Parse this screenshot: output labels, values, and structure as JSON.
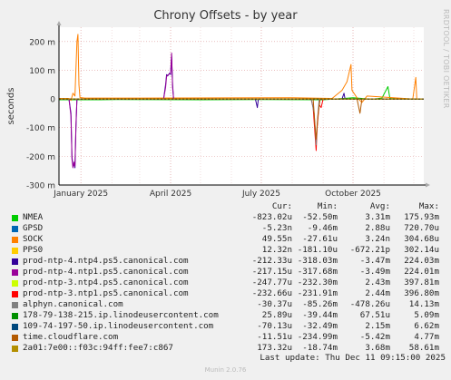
{
  "title": "Chrony Offsets - by year",
  "side_text": "RRDTOOL / TOBI OETIKER",
  "chart_data": {
    "type": "line",
    "title": "Chrony Offsets - by year",
    "ylabel": "seconds",
    "ylim": [
      -0.3,
      0.25
    ],
    "yticks": [
      {
        "value": 0.2,
        "label": "200 m"
      },
      {
        "value": 0.1,
        "label": "100 m"
      },
      {
        "value": 0,
        "label": "0"
      },
      {
        "value": -0.1,
        "label": "-100 m"
      },
      {
        "value": -0.2,
        "label": "-200 m"
      },
      {
        "value": -0.3,
        "label": "-300 m"
      }
    ],
    "xlim": [
      "2024-12-10",
      "2025-12-11"
    ],
    "xticks": [
      {
        "value": "2025-01-01",
        "label": "January 2025"
      },
      {
        "value": "2025-04-01",
        "label": "April 2025"
      },
      {
        "value": "2025-07-01",
        "label": "July 2025"
      },
      {
        "value": "2025-10-01",
        "label": "October 2025"
      }
    ],
    "grid": true,
    "series": [
      {
        "name": "NMEA",
        "color": "#00cc00",
        "points": [
          [
            "2024-12-10",
            -0.003
          ],
          [
            "2025-01-20",
            -0.003
          ],
          [
            "2025-02-10",
            -0.002
          ],
          [
            "2025-05-01",
            -0.003
          ],
          [
            "2025-07-01",
            -0.002
          ],
          [
            "2025-09-01",
            -0.003
          ],
          [
            "2025-10-01",
            0.004
          ],
          [
            "2025-10-20",
            -0.001
          ],
          [
            "2025-10-30",
            0.003
          ],
          [
            "2025-11-05",
            0.043
          ],
          [
            "2025-11-07",
            0.002
          ],
          [
            "2025-12-11",
            -0.001
          ]
        ]
      },
      {
        "name": "GPSD",
        "color": "#0066b3",
        "points": [
          [
            "2024-12-10",
            0.0
          ],
          [
            "2025-12-11",
            0.0
          ]
        ]
      },
      {
        "name": "SOCK",
        "color": "#ff8000",
        "points": [
          [
            "2024-12-10",
            0.002
          ],
          [
            "2024-12-20",
            0.002
          ],
          [
            "2024-12-22",
            -0.005
          ],
          [
            "2024-12-24",
            0.02
          ],
          [
            "2024-12-26",
            0.01
          ],
          [
            "2024-12-28",
            0.2
          ],
          [
            "2024-12-29",
            0.225
          ],
          [
            "2024-12-30",
            0.05
          ],
          [
            "2024-12-31",
            0.005
          ],
          [
            "2025-01-05",
            0.003
          ],
          [
            "2025-03-01",
            0.003
          ],
          [
            "2025-08-01",
            0.004
          ],
          [
            "2025-09-10",
            0.002
          ],
          [
            "2025-09-20",
            0.03
          ],
          [
            "2025-09-25",
            0.06
          ],
          [
            "2025-09-29",
            0.12
          ],
          [
            "2025-09-30",
            0.03
          ],
          [
            "2025-10-05",
            0.004
          ],
          [
            "2025-10-10",
            -0.012
          ],
          [
            "2025-10-15",
            0.01
          ],
          [
            "2025-11-30",
            0.0
          ],
          [
            "2025-12-03",
            0.075
          ],
          [
            "2025-12-04",
            0.0
          ],
          [
            "2025-12-11",
            0.0
          ]
        ]
      },
      {
        "name": "PPS0",
        "color": "#ffcc00",
        "points": [
          [
            "2024-12-10",
            0.0
          ],
          [
            "2025-12-11",
            0.0
          ]
        ]
      },
      {
        "name": "prod-ntp-4.ntp4.ps5.canonical.com",
        "color": "#330099",
        "points": [
          [
            "2024-12-10",
            0.0
          ],
          [
            "2024-12-20",
            0.0
          ],
          [
            "2024-12-22",
            -0.05
          ],
          [
            "2024-12-23",
            -0.2
          ],
          [
            "2024-12-24",
            -0.235
          ],
          [
            "2024-12-25",
            -0.225
          ],
          [
            "2024-12-26",
            -0.24
          ],
          [
            "2024-12-27",
            -0.1
          ],
          [
            "2024-12-28",
            0.0
          ],
          [
            "2025-03-25",
            0.0
          ],
          [
            "2025-03-27",
            0.05
          ],
          [
            "2025-03-28",
            0.085
          ],
          [
            "2025-03-29",
            0.08
          ],
          [
            "2025-03-31",
            0.09
          ],
          [
            "2025-04-01",
            0.085
          ],
          [
            "2025-04-02",
            0.15
          ],
          [
            "2025-04-03",
            0.05
          ],
          [
            "2025-04-04",
            0.0
          ],
          [
            "2025-06-25",
            0.0
          ],
          [
            "2025-06-27",
            -0.03
          ],
          [
            "2025-06-28",
            0.0
          ],
          [
            "2025-09-20",
            0.0
          ],
          [
            "2025-09-22",
            0.02
          ],
          [
            "2025-09-23",
            0.0
          ],
          [
            "2025-12-11",
            0.0
          ]
        ]
      },
      {
        "name": "prod-ntp-4.ntp1.ps5.canonical.com",
        "color": "#990099",
        "points": [
          [
            "2024-12-10",
            0.0
          ],
          [
            "2024-12-20",
            0.0
          ],
          [
            "2024-12-22",
            -0.06
          ],
          [
            "2024-12-23",
            -0.21
          ],
          [
            "2024-12-24",
            -0.24
          ],
          [
            "2024-12-25",
            -0.22
          ],
          [
            "2024-12-26",
            -0.235
          ],
          [
            "2024-12-27",
            -0.09
          ],
          [
            "2024-12-28",
            0.0
          ],
          [
            "2025-03-25",
            0.0
          ],
          [
            "2025-03-27",
            0.04
          ],
          [
            "2025-03-28",
            0.08
          ],
          [
            "2025-03-30",
            0.085
          ],
          [
            "2025-04-01",
            0.09
          ],
          [
            "2025-04-02",
            0.16
          ],
          [
            "2025-04-03",
            0.04
          ],
          [
            "2025-04-04",
            0.0
          ],
          [
            "2025-12-11",
            0.0
          ]
        ]
      },
      {
        "name": "prod-ntp-3.ntp4.ps5.canonical.com",
        "color": "#ccff00",
        "points": [
          [
            "2024-12-10",
            0.0
          ],
          [
            "2025-12-11",
            0.0
          ]
        ]
      },
      {
        "name": "prod-ntp-3.ntp1.ps5.canonical.com",
        "color": "#ff0000",
        "points": [
          [
            "2024-12-10",
            0.0
          ],
          [
            "2025-08-20",
            0.0
          ],
          [
            "2025-08-22",
            -0.03
          ],
          [
            "2025-08-24",
            -0.13
          ],
          [
            "2025-08-25",
            -0.18
          ],
          [
            "2025-08-26",
            -0.1
          ],
          [
            "2025-08-28",
            -0.02
          ],
          [
            "2025-08-30",
            -0.03
          ],
          [
            "2025-09-01",
            0.0
          ],
          [
            "2025-12-11",
            0.0
          ]
        ]
      },
      {
        "name": "alphyn.canonical.com",
        "color": "#808080",
        "points": [
          [
            "2024-12-10",
            0.0
          ],
          [
            "2025-08-20",
            0.0
          ],
          [
            "2025-08-23",
            -0.05
          ],
          [
            "2025-08-25",
            -0.16
          ],
          [
            "2025-08-26",
            -0.09
          ],
          [
            "2025-08-28",
            0.0
          ],
          [
            "2025-12-11",
            0.0
          ]
        ]
      },
      {
        "name": "178-79-138-215.ip.linodeusercontent.com",
        "color": "#008f00",
        "points": [
          [
            "2024-12-10",
            0.0
          ],
          [
            "2025-12-11",
            0.0
          ]
        ]
      },
      {
        "name": "109-74-197-50.ip.linodeusercontent.com",
        "color": "#00487d",
        "points": [
          [
            "2024-12-10",
            0.0
          ],
          [
            "2025-12-11",
            0.0
          ]
        ]
      },
      {
        "name": "time.cloudflare.com",
        "color": "#b35a00",
        "points": [
          [
            "2024-12-10",
            0.0
          ],
          [
            "2025-08-22",
            0.0
          ],
          [
            "2025-08-24",
            -0.1
          ],
          [
            "2025-08-25",
            -0.14
          ],
          [
            "2025-08-27",
            -0.05
          ],
          [
            "2025-08-29",
            0.0
          ],
          [
            "2025-10-05",
            0.0
          ],
          [
            "2025-10-08",
            -0.05
          ],
          [
            "2025-10-10",
            0.0
          ],
          [
            "2025-12-11",
            0.0
          ]
        ]
      },
      {
        "name": "2a01:7e00::f03c:94ff:fee7:c867",
        "color": "#b38f00",
        "points": [
          [
            "2024-12-10",
            0.0
          ],
          [
            "2025-12-11",
            0.0
          ]
        ]
      }
    ]
  },
  "legend": {
    "headers": [
      "Cur:",
      "Min:",
      "Avg:",
      "Max:"
    ],
    "rows": [
      {
        "name": "NMEA",
        "cur": "-823.02u",
        "min": "-52.50m",
        "avg": "3.31m",
        "max": "175.93m"
      },
      {
        "name": "GPSD",
        "cur": "-5.23n",
        "min": "-9.46m",
        "avg": "2.88u",
        "max": "720.70u"
      },
      {
        "name": "SOCK",
        "cur": "49.55n",
        "min": "-27.61u",
        "avg": "3.24n",
        "max": "304.68u"
      },
      {
        "name": "PPS0",
        "cur": "12.32n",
        "min": "-181.10u",
        "avg": "-672.21p",
        "max": "302.14u"
      },
      {
        "name": "prod-ntp-4.ntp4.ps5.canonical.com",
        "cur": "-212.33u",
        "min": "-318.03m",
        "avg": "-3.47m",
        "max": "224.03m"
      },
      {
        "name": "prod-ntp-4.ntp1.ps5.canonical.com",
        "cur": "-217.15u",
        "min": "-317.68m",
        "avg": "-3.49m",
        "max": "224.01m"
      },
      {
        "name": "prod-ntp-3.ntp4.ps5.canonical.com",
        "cur": "-247.77u",
        "min": "-232.30m",
        "avg": "2.43m",
        "max": "397.81m"
      },
      {
        "name": "prod-ntp-3.ntp1.ps5.canonical.com",
        "cur": "-232.66u",
        "min": "-231.91m",
        "avg": "2.44m",
        "max": "396.80m"
      },
      {
        "name": "alphyn.canonical.com",
        "cur": "-30.37u",
        "min": "-85.26m",
        "avg": "-478.26u",
        "max": "14.13m"
      },
      {
        "name": "178-79-138-215.ip.linodeusercontent.com",
        "cur": "25.89u",
        "min": "-39.44m",
        "avg": "67.51u",
        "max": "5.09m"
      },
      {
        "name": "109-74-197-50.ip.linodeusercontent.com",
        "cur": "-70.13u",
        "min": "-32.49m",
        "avg": "2.15m",
        "max": "6.62m"
      },
      {
        "name": "time.cloudflare.com",
        "cur": "-11.51u",
        "min": "-234.99m",
        "avg": "-5.42m",
        "max": "4.77m"
      },
      {
        "name": "2a01:7e00::f03c:94ff:fee7:c867",
        "cur": "173.32u",
        "min": "-18.74m",
        "avg": "3.68m",
        "max": "58.61m"
      }
    ]
  },
  "last_update": "Last update: Thu Dec 11 09:15:00 2025",
  "footer": "Munin 2.0.76"
}
